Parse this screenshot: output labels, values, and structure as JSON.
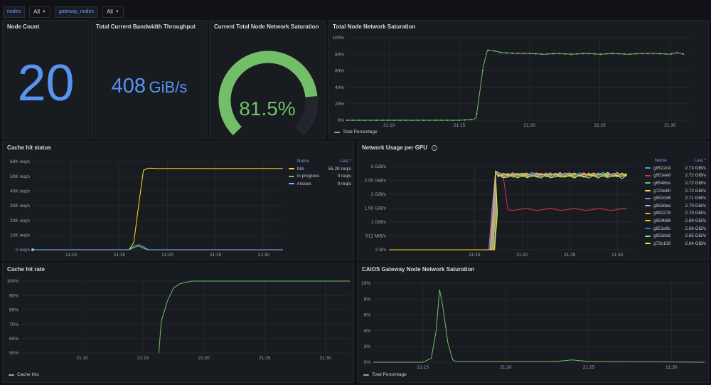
{
  "variables": [
    {
      "label": "nodes",
      "value": "All"
    },
    {
      "label": "gateway_nodes",
      "value": "All"
    }
  ],
  "panels": {
    "node_count": {
      "title": "Node Count",
      "value": "20",
      "color": "#5794f2"
    },
    "bandwidth": {
      "title": "Total Current Bandwidth Throughput",
      "value": "408",
      "unit": "GiB/s",
      "color": "#5794f2"
    },
    "saturation_gauge": {
      "title": "Current Total Node Network Saturation",
      "value": "81.5%",
      "percent": 81.5,
      "colors": {
        "value": "#73bf69",
        "track": "#22252b",
        "thresholds": [
          "#c4162a",
          "#ff7383",
          "#ff9830",
          "#fade2a",
          "#73bf69"
        ]
      }
    },
    "saturation_ts": {
      "title": "Total Node Network Saturation",
      "legend": "Total Percentage",
      "color": "#73bf69"
    },
    "cache_hit_status": {
      "title": "Cache hit status",
      "legend_header": {
        "name": "Name",
        "last": "Last *"
      }
    },
    "network_per_gpu": {
      "title": "Network Usage per GPU",
      "legend_header": {
        "name": "Name",
        "last": "Last *"
      }
    },
    "cache_hit_rate": {
      "title": "Cache hit rate",
      "legend": "Cache hits",
      "color": "#73bf69"
    },
    "caios_gateway": {
      "title": "CAIOS Gateway Node Network Saturation",
      "legend": "Total Percentage",
      "color": "#73bf69"
    }
  },
  "chart_data": [
    {
      "id": "saturation_ts",
      "type": "line",
      "y_ticks": [
        "0%",
        "20%",
        "40%",
        "60%",
        "80%",
        "100%"
      ],
      "x_ticks": [
        "21:10",
        "21:15",
        "21:20",
        "21:25",
        "21:30"
      ],
      "ylim": [
        0,
        100
      ],
      "series": [
        {
          "name": "Total Percentage",
          "color": "#73bf69",
          "x": [
            21.07,
            21.08,
            21.09,
            21.1,
            21.11,
            21.12,
            21.13,
            21.14,
            21.15,
            21.16,
            21.162,
            21.165,
            21.167,
            21.17,
            21.175,
            21.18,
            21.19,
            21.2,
            21.21,
            21.22,
            21.23,
            21.24,
            21.25,
            21.26,
            21.27,
            21.28,
            21.29,
            21.3,
            21.305,
            21.31
          ],
          "y": [
            0,
            0,
            0,
            0,
            0,
            0,
            0,
            0,
            0,
            1,
            3,
            40,
            65,
            85,
            84,
            82,
            81,
            81,
            80,
            81,
            80,
            81,
            80,
            81,
            80,
            81,
            81,
            80,
            82,
            80
          ]
        }
      ]
    },
    {
      "id": "cache_hit_status",
      "type": "line",
      "y_ticks": [
        "0 req/s",
        "10K req/s",
        "20K req/s",
        "30K req/s",
        "40K req/s",
        "50K req/s",
        "60K req/s"
      ],
      "x_ticks": [
        "21:10",
        "21:15",
        "21:20",
        "21:25",
        "21:30"
      ],
      "ylim": [
        0,
        60000
      ],
      "series": [
        {
          "name": "hits",
          "last": "55.2K req/s",
          "color": "#fade2a",
          "x": [
            21.06,
            21.16,
            21.165,
            21.17,
            21.175,
            21.18,
            21.19,
            21.2,
            21.25,
            21.3,
            21.32
          ],
          "y": [
            0,
            0,
            5000,
            30000,
            54000,
            55500,
            55200,
            55300,
            55200,
            55300,
            55200
          ]
        },
        {
          "name": "in progress",
          "last": "0 req/s",
          "color": "#73bf69",
          "x": [
            21.06,
            21.16,
            21.165,
            21.17,
            21.175,
            21.18,
            21.32
          ],
          "y": [
            0,
            0,
            1500,
            2500,
            1000,
            0,
            0
          ]
        },
        {
          "name": "misses",
          "last": "0 req/s",
          "color": "#8ab8ff",
          "x": [
            21.06,
            21.16,
            21.165,
            21.17,
            21.175,
            21.18,
            21.32
          ],
          "y": [
            0,
            0,
            2500,
            3500,
            2000,
            0,
            0
          ]
        }
      ]
    },
    {
      "id": "network_per_gpu",
      "type": "line",
      "y_ticks": [
        "0 B/s",
        "512 MiB/s",
        "1 GiB/s",
        "1.50 GiB/s",
        "2 GiB/s",
        "2.50 GiB/s",
        "3 GiB/s"
      ],
      "x_ticks": [
        "21:15",
        "21:20",
        "21:25",
        "21:30"
      ],
      "ylim": [
        0,
        3
      ],
      "series": [
        {
          "name": "g9522c4",
          "last": "2.73 GiB/s",
          "color": "#5794f2"
        },
        {
          "name": "g951ee8",
          "last": "2.72 GiB/s",
          "color": "#e02f44"
        },
        {
          "name": "g8548ce",
          "last": "2.72 GiB/s",
          "color": "#73bf69"
        },
        {
          "name": "g723e80",
          "last": "2.72 GiB/s",
          "color": "#fade2a"
        },
        {
          "name": "g952cb6",
          "last": "2.71 GiB/s",
          "color": "#b877d9"
        },
        {
          "name": "g953dee",
          "last": "2.70 GiB/s",
          "color": "#8ab8ff"
        },
        {
          "name": "g952278",
          "last": "2.70 GiB/s",
          "color": "#ff9830"
        },
        {
          "name": "g954b96",
          "last": "2.69 GiB/s",
          "color": "#f2cc0c"
        },
        {
          "name": "g951e9c",
          "last": "2.66 GiB/s",
          "color": "#3274d9"
        },
        {
          "name": "g953dc8",
          "last": "2.65 GiB/s",
          "color": "#96d98d"
        },
        {
          "name": "g73c108",
          "last": "2.64 GiB/s",
          "color": "#fade2a"
        }
      ]
    },
    {
      "id": "cache_hit_rate",
      "type": "line",
      "y_ticks": [
        "50%",
        "60%",
        "70%",
        "80%",
        "90%",
        "100%"
      ],
      "x_ticks": [
        "21:10",
        "21:15",
        "21:20",
        "21:25",
        "21:30"
      ],
      "ylim": [
        50,
        100
      ],
      "series": [
        {
          "name": "Cache hits",
          "color": "#73bf69",
          "x": [
            21.163,
            21.165,
            21.17,
            21.175,
            21.18,
            21.19,
            21.2,
            21.25,
            21.3,
            21.32
          ],
          "y": [
            50,
            72,
            86,
            95,
            98,
            100,
            100,
            100,
            100,
            100
          ]
        }
      ]
    },
    {
      "id": "caios_gateway",
      "type": "line",
      "y_ticks": [
        "0%",
        "2%",
        "4%",
        "6%",
        "8%",
        "10%"
      ],
      "x_ticks": [
        "21:15",
        "21:20",
        "21:25",
        "21:30"
      ],
      "ylim": [
        0,
        10
      ],
      "series": [
        {
          "name": "Total Percentage",
          "color": "#73bf69",
          "x": [
            21.12,
            21.15,
            21.155,
            21.158,
            21.16,
            21.162,
            21.165,
            21.168,
            21.17,
            21.18,
            21.2,
            21.23,
            21.24,
            21.25,
            21.26,
            21.32
          ],
          "y": [
            0,
            0,
            0.5,
            4,
            9.2,
            7,
            2.5,
            0.3,
            0.1,
            0.1,
            0.1,
            0.1,
            0.3,
            0.1,
            0.1,
            0
          ]
        }
      ]
    }
  ]
}
